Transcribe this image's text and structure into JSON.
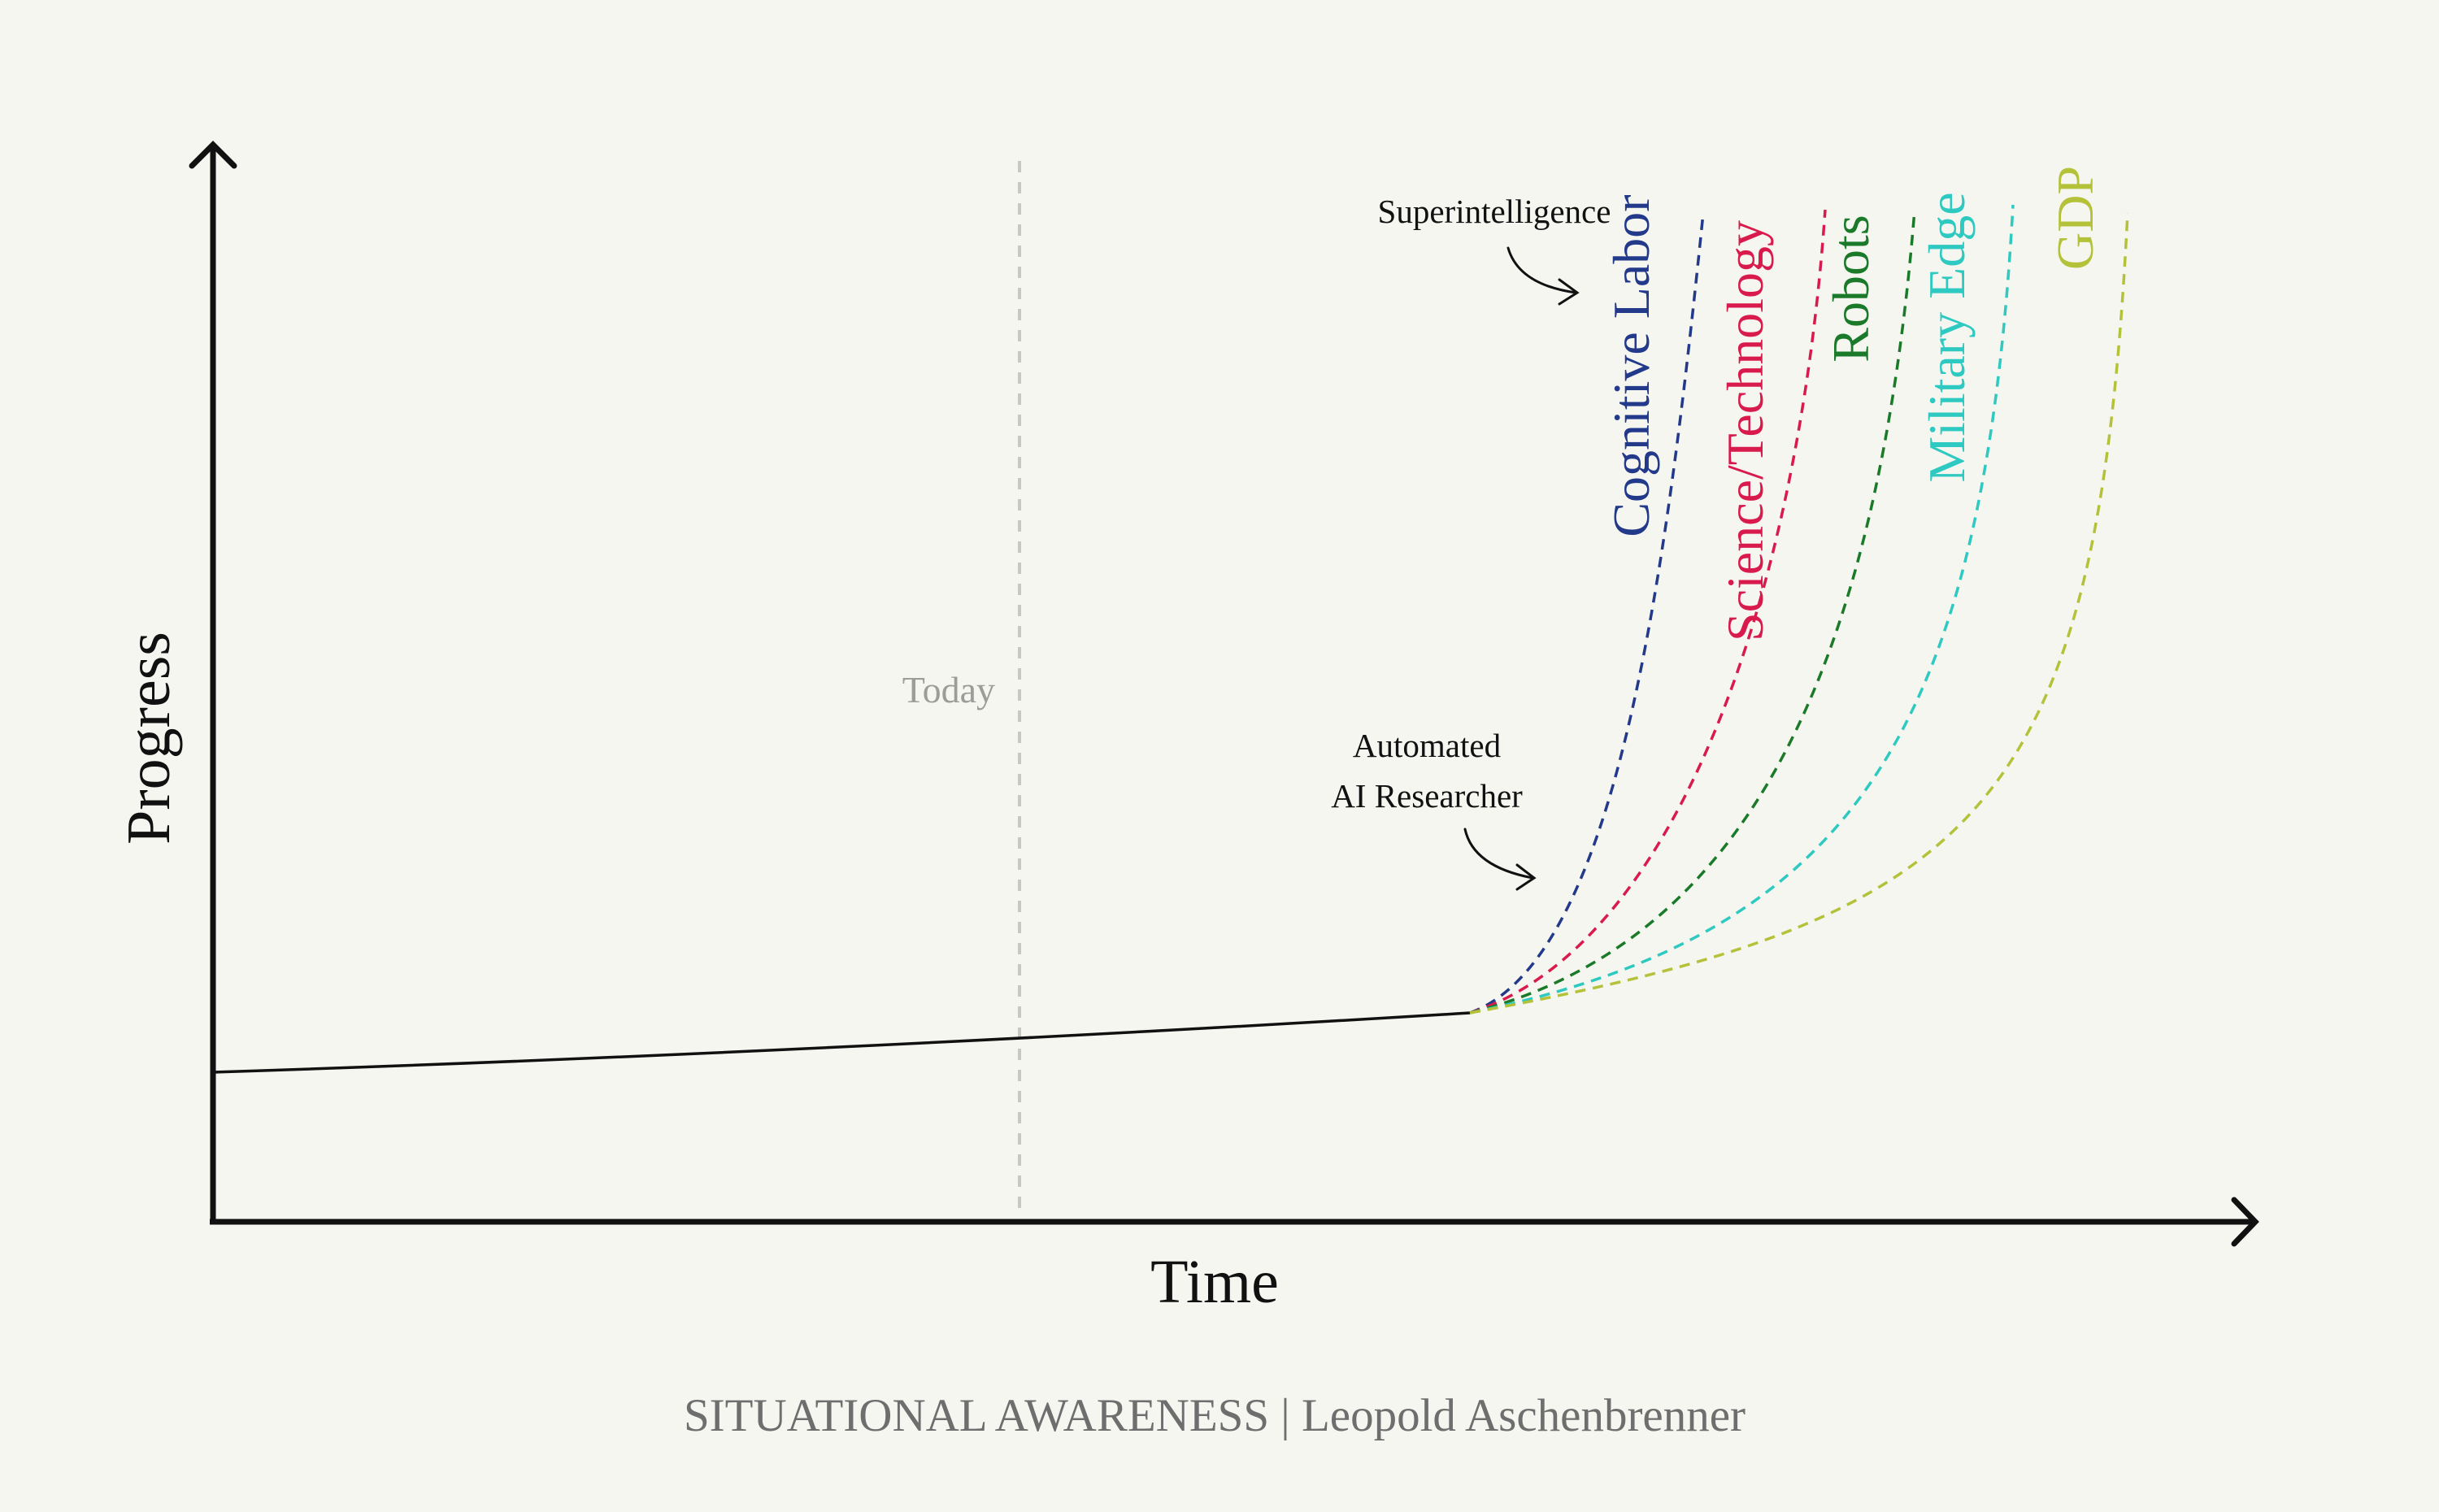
{
  "chart_data": {
    "type": "line",
    "xlabel": "Time",
    "ylabel": "Progress",
    "today_label": "Today",
    "annotations": [
      {
        "lines": [
          "Automated",
          "AI Researcher"
        ]
      },
      {
        "lines": [
          "Superintelligence"
        ]
      }
    ],
    "series": [
      {
        "name": "Cognitive Labor",
        "color": "#23398a"
      },
      {
        "name": "Science/Technology",
        "color": "#d81b4c"
      },
      {
        "name": "Robots",
        "color": "#1a7a2a"
      },
      {
        "name": "Military Edge",
        "color": "#2ec9c0"
      },
      {
        "name": "GDP",
        "color": "#b4c23a"
      }
    ],
    "footer": "SITUATIONAL AWARENESS | Leopold Aschenbrenner"
  }
}
